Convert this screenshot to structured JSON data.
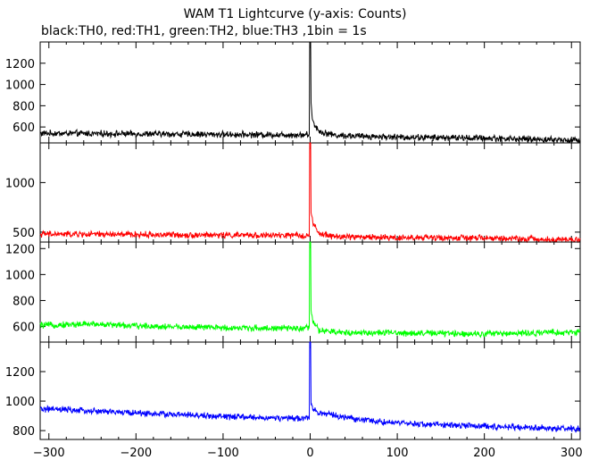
{
  "chart_data": {
    "type": "line",
    "title": "WAM T1 Lightcurve (y-axis: Counts)",
    "subtitle": "black:TH0, red:TH1, green:TH2, blue:TH3 ,1bin = 1s",
    "xlim": [
      -310,
      310
    ],
    "x_ticks": [
      -300,
      -200,
      -100,
      0,
      100,
      200,
      300
    ],
    "x_tick_labels": [
      "−300",
      "−200",
      "−100",
      "0",
      "100",
      "200",
      "300"
    ],
    "grid": false,
    "panels": [
      {
        "name": "TH0",
        "color": "#000000",
        "ylim": [
          450,
          1400
        ],
        "y_ticks": [
          600,
          800,
          1000,
          1200
        ],
        "series": [
          {
            "x": -300,
            "y": 540
          },
          {
            "x": -200,
            "y": 535
          },
          {
            "x": -100,
            "y": 530
          },
          {
            "x": -10,
            "y": 525
          },
          {
            "x": -1,
            "y": 530
          },
          {
            "x": 0,
            "y": 1400
          },
          {
            "x": 1,
            "y": 820
          },
          {
            "x": 3,
            "y": 650
          },
          {
            "x": 10,
            "y": 560
          },
          {
            "x": 30,
            "y": 520
          },
          {
            "x": 100,
            "y": 505
          },
          {
            "x": 200,
            "y": 495
          },
          {
            "x": 310,
            "y": 475
          }
        ]
      },
      {
        "name": "TH1",
        "color": "#ff0000",
        "ylim": [
          400,
          1400
        ],
        "y_ticks": [
          500,
          1000
        ],
        "series": [
          {
            "x": -300,
            "y": 480
          },
          {
            "x": -200,
            "y": 475
          },
          {
            "x": -100,
            "y": 470
          },
          {
            "x": -10,
            "y": 465
          },
          {
            "x": -1,
            "y": 470
          },
          {
            "x": 0,
            "y": 1400
          },
          {
            "x": 1,
            "y": 700
          },
          {
            "x": 3,
            "y": 600
          },
          {
            "x": 10,
            "y": 480
          },
          {
            "x": 30,
            "y": 455
          },
          {
            "x": 100,
            "y": 445
          },
          {
            "x": 200,
            "y": 440
          },
          {
            "x": 310,
            "y": 420
          }
        ]
      },
      {
        "name": "TH2",
        "color": "#00ff00",
        "ylim": [
          480,
          1250
        ],
        "y_ticks": [
          600,
          800,
          1000,
          1200
        ],
        "series": [
          {
            "x": -300,
            "y": 610
          },
          {
            "x": -250,
            "y": 620
          },
          {
            "x": -200,
            "y": 605
          },
          {
            "x": -100,
            "y": 590
          },
          {
            "x": -10,
            "y": 585
          },
          {
            "x": -1,
            "y": 590
          },
          {
            "x": 0,
            "y": 1250
          },
          {
            "x": 1,
            "y": 720
          },
          {
            "x": 3,
            "y": 640
          },
          {
            "x": 10,
            "y": 570
          },
          {
            "x": 30,
            "y": 555
          },
          {
            "x": 100,
            "y": 550
          },
          {
            "x": 200,
            "y": 545
          },
          {
            "x": 310,
            "y": 555
          }
        ]
      },
      {
        "name": "TH3",
        "color": "#0000ff",
        "ylim": [
          740,
          1400
        ],
        "y_ticks": [
          800,
          1000,
          1200
        ],
        "series": [
          {
            "x": -300,
            "y": 945
          },
          {
            "x": -200,
            "y": 920
          },
          {
            "x": -100,
            "y": 895
          },
          {
            "x": -10,
            "y": 880
          },
          {
            "x": -1,
            "y": 890
          },
          {
            "x": 0,
            "y": 1400
          },
          {
            "x": 1,
            "y": 1000
          },
          {
            "x": 3,
            "y": 950
          },
          {
            "x": 10,
            "y": 920
          },
          {
            "x": 50,
            "y": 880
          },
          {
            "x": 100,
            "y": 850
          },
          {
            "x": 200,
            "y": 830
          },
          {
            "x": 310,
            "y": 810
          }
        ]
      }
    ]
  }
}
